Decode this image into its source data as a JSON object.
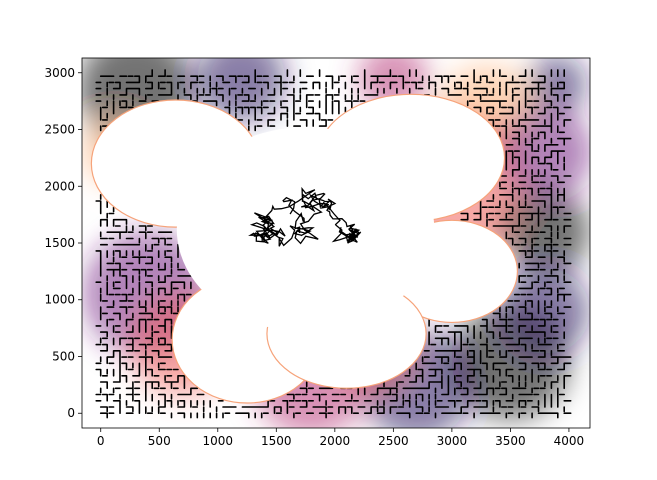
{
  "chart_data": {
    "type": "scatter",
    "title": "",
    "xlabel": "",
    "ylabel": "",
    "xlim": [
      -160,
      4180
    ],
    "ylim": [
      -130,
      3130
    ],
    "xticks": [
      0,
      500,
      1000,
      1500,
      2000,
      2500,
      3000,
      3500,
      4000
    ],
    "yticks": [
      0,
      500,
      1000,
      1500,
      2000,
      2500,
      3000
    ],
    "xtick_labels": [
      "0",
      "500",
      "1000",
      "1500",
      "2000",
      "2500",
      "3000",
      "3500",
      "4000"
    ],
    "ytick_labels": [
      "0",
      "500",
      "1000",
      "1500",
      "2000",
      "2500",
      "3000"
    ],
    "grid": false,
    "data_extent": {
      "x": [
        0,
        4000
      ],
      "y": [
        0,
        3000
      ]
    },
    "palette": [
      "#000004",
      "#2c115f",
      "#721f81",
      "#b73779",
      "#f1605d",
      "#feb078",
      "#fcfdbf"
    ],
    "path_color": "#000000",
    "background_color": "#ffffff",
    "flower_petal_centers": [
      {
        "x": 640,
        "y": 2200
      },
      {
        "x": 2650,
        "y": 2250
      },
      {
        "x": 3000,
        "y": 1250
      },
      {
        "x": 1250,
        "y": 650
      },
      {
        "x": 2100,
        "y": 700
      }
    ],
    "flower_center": {
      "x": 1750,
      "y": 1620
    }
  }
}
